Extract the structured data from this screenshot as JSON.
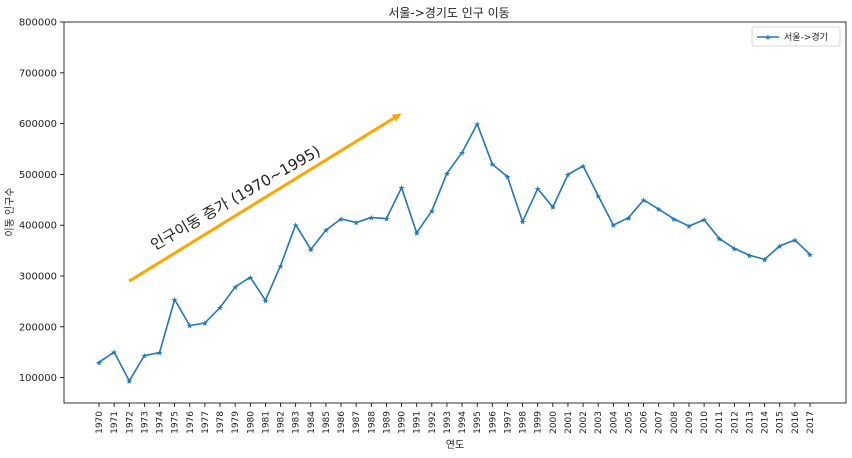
{
  "chart_data": {
    "type": "line",
    "title": "서울->경기도 인구 이동",
    "xlabel": "연도",
    "ylabel": "이동 인구수",
    "ylim": [
      50000,
      800000
    ],
    "yticks": [
      100000,
      200000,
      300000,
      400000,
      500000,
      600000,
      700000,
      800000
    ],
    "grid": false,
    "legend_position": "top-right",
    "categories": [
      "1970",
      "1971",
      "1972",
      "1973",
      "1974",
      "1975",
      "1976",
      "1977",
      "1978",
      "1979",
      "1980",
      "1981",
      "1982",
      "1983",
      "1984",
      "1985",
      "1986",
      "1987",
      "1988",
      "1989",
      "1990",
      "1991",
      "1992",
      "1993",
      "1994",
      "1995",
      "1996",
      "1997",
      "1998",
      "1999",
      "2000",
      "2001",
      "2002",
      "2003",
      "2004",
      "2005",
      "2006",
      "2007",
      "2008",
      "2009",
      "2010",
      "2011",
      "2012",
      "2013",
      "2014",
      "2015",
      "2016",
      "2017"
    ],
    "series": [
      {
        "name": "서울->경기",
        "color": "#1f77b4",
        "marker": "star",
        "values": [
          130149,
          150313,
          93333,
          143234,
          149045,
          253705,
          202276,
          207722,
          237684,
          278411,
          297539,
          252073,
          320174,
          400875,
          352238,
          390265,
          412535,
          405220,
          415174,
          412933,
          473889,
          384714,
          428344,
          502223,
          542880,
          599411,
          520059,
          495454,
          407050,
          471841,
          435573,
          499575,
          516765,
          457656,
          400206,
          414621,
          449632,
          431637,
          412408,
          398282,
          410735,
          373771,
          354135,
          340801,
          332785,
          359337,
          370760,
          342433
        ]
      }
    ],
    "annotations": [
      {
        "type": "arrow",
        "color": "#ffa500",
        "from": {
          "x": "1972",
          "y": 290000
        },
        "to": {
          "x": "1990",
          "y": 620000
        }
      },
      {
        "type": "text",
        "text": "인구이동 증가 (1970~1995)",
        "x": "1974",
        "y": 350000,
        "rotation_degrees": -30
      }
    ]
  }
}
